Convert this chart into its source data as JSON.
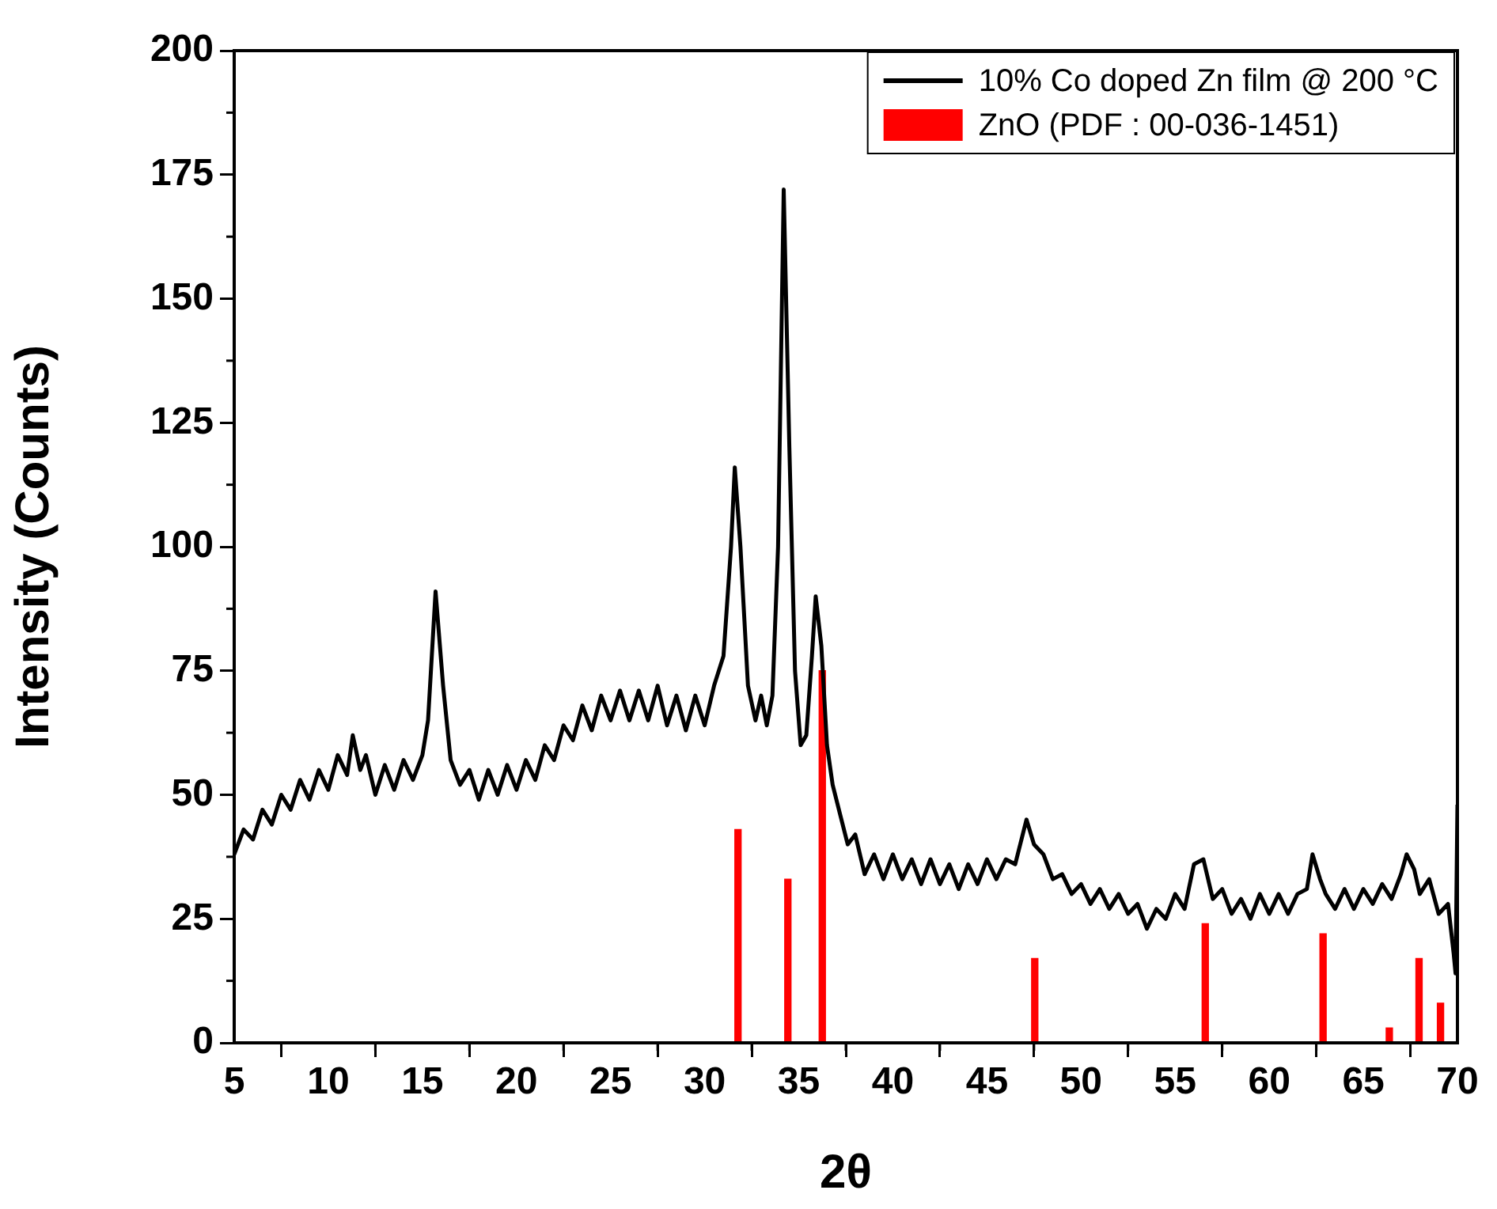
{
  "chart_data": {
    "type": "line",
    "xlabel": "2θ",
    "ylabel": "Intensity (Counts)",
    "xlim": [
      5,
      70
    ],
    "xticks": [
      5,
      10,
      15,
      20,
      25,
      30,
      35,
      40,
      45,
      50,
      55,
      60,
      65,
      70
    ],
    "ylim": [
      0,
      200
    ],
    "yticks": [
      0,
      25,
      50,
      75,
      100,
      125,
      150,
      175,
      200
    ],
    "grid": false,
    "legend": "top right",
    "marker": "none",
    "line_style": "solid",
    "series": [
      {
        "name": "10% Co doped Zn film @ 200 °C",
        "color": "#000000",
        "x": [
          5,
          5.5,
          6,
          6.5,
          7,
          7.5,
          8,
          8.5,
          9,
          9.5,
          10,
          10.5,
          11,
          11.3,
          11.7,
          12,
          12.5,
          13,
          13.5,
          14,
          14.5,
          15,
          15.3,
          15.7,
          16.1,
          16.5,
          17,
          17.5,
          18,
          18.5,
          19,
          19.5,
          20,
          20.5,
          21,
          21.5,
          22,
          22.5,
          23,
          23.5,
          24,
          24.5,
          25,
          25.5,
          26,
          26.5,
          27,
          27.5,
          28,
          28.5,
          29,
          29.5,
          30,
          30.5,
          31,
          31.4,
          31.6,
          31.9,
          32.3,
          32.7,
          33,
          33.3,
          33.6,
          33.9,
          34.2,
          34.5,
          34.8,
          35.1,
          35.4,
          35.7,
          35.9,
          36.2,
          36.5,
          36.8,
          37.2,
          37.6,
          38,
          38.5,
          39,
          39.5,
          40,
          40.5,
          41,
          41.5,
          42,
          42.5,
          43,
          43.5,
          44,
          44.5,
          45,
          45.5,
          46,
          46.5,
          47.1,
          47.5,
          48,
          48.5,
          49,
          49.5,
          50,
          50.5,
          51,
          51.5,
          52,
          52.5,
          53,
          53.5,
          54,
          54.5,
          55,
          55.5,
          56,
          56.5,
          57,
          57.5,
          58,
          58.5,
          59,
          59.5,
          60,
          60.5,
          61,
          61.5,
          62,
          62.3,
          62.7,
          63,
          63.5,
          64,
          64.5,
          65,
          65.5,
          66,
          66.5,
          67,
          67.3,
          67.7,
          68,
          68.5,
          69,
          69.5,
          69.8,
          69.9,
          70
        ],
        "values": [
          38,
          43,
          41,
          47,
          44,
          50,
          47,
          53,
          49,
          55,
          51,
          58,
          54,
          62,
          55,
          58,
          50,
          56,
          51,
          57,
          53,
          58,
          65,
          91,
          72,
          57,
          52,
          55,
          49,
          55,
          50,
          56,
          51,
          57,
          53,
          60,
          57,
          64,
          61,
          68,
          63,
          70,
          65,
          71,
          65,
          71,
          65,
          72,
          64,
          70,
          63,
          70,
          64,
          72,
          78,
          100,
          116,
          100,
          72,
          65,
          70,
          64,
          70,
          100,
          172,
          120,
          75,
          60,
          62,
          78,
          90,
          80,
          60,
          52,
          46,
          40,
          42,
          34,
          38,
          33,
          38,
          33,
          37,
          32,
          37,
          32,
          36,
          31,
          36,
          32,
          37,
          33,
          37,
          36,
          45,
          40,
          38,
          33,
          34,
          30,
          32,
          28,
          31,
          27,
          30,
          26,
          28,
          23,
          27,
          25,
          30,
          27,
          36,
          37,
          29,
          31,
          26,
          29,
          25,
          30,
          26,
          30,
          26,
          30,
          31,
          38,
          33,
          30,
          27,
          31,
          27,
          31,
          28,
          32,
          29,
          34,
          38,
          35,
          30,
          33,
          26,
          28,
          18,
          14,
          48
        ]
      },
      {
        "name": "ZnO (PDF : 00-036-1451)",
        "type": "bar",
        "color": "#ff0000",
        "x": [
          31.77,
          34.42,
          36.25,
          47.54,
          56.6,
          62.86,
          66.38,
          67.96,
          69.1
        ],
        "values": [
          43,
          33,
          75,
          17,
          24,
          22,
          3,
          17,
          8
        ]
      }
    ]
  }
}
